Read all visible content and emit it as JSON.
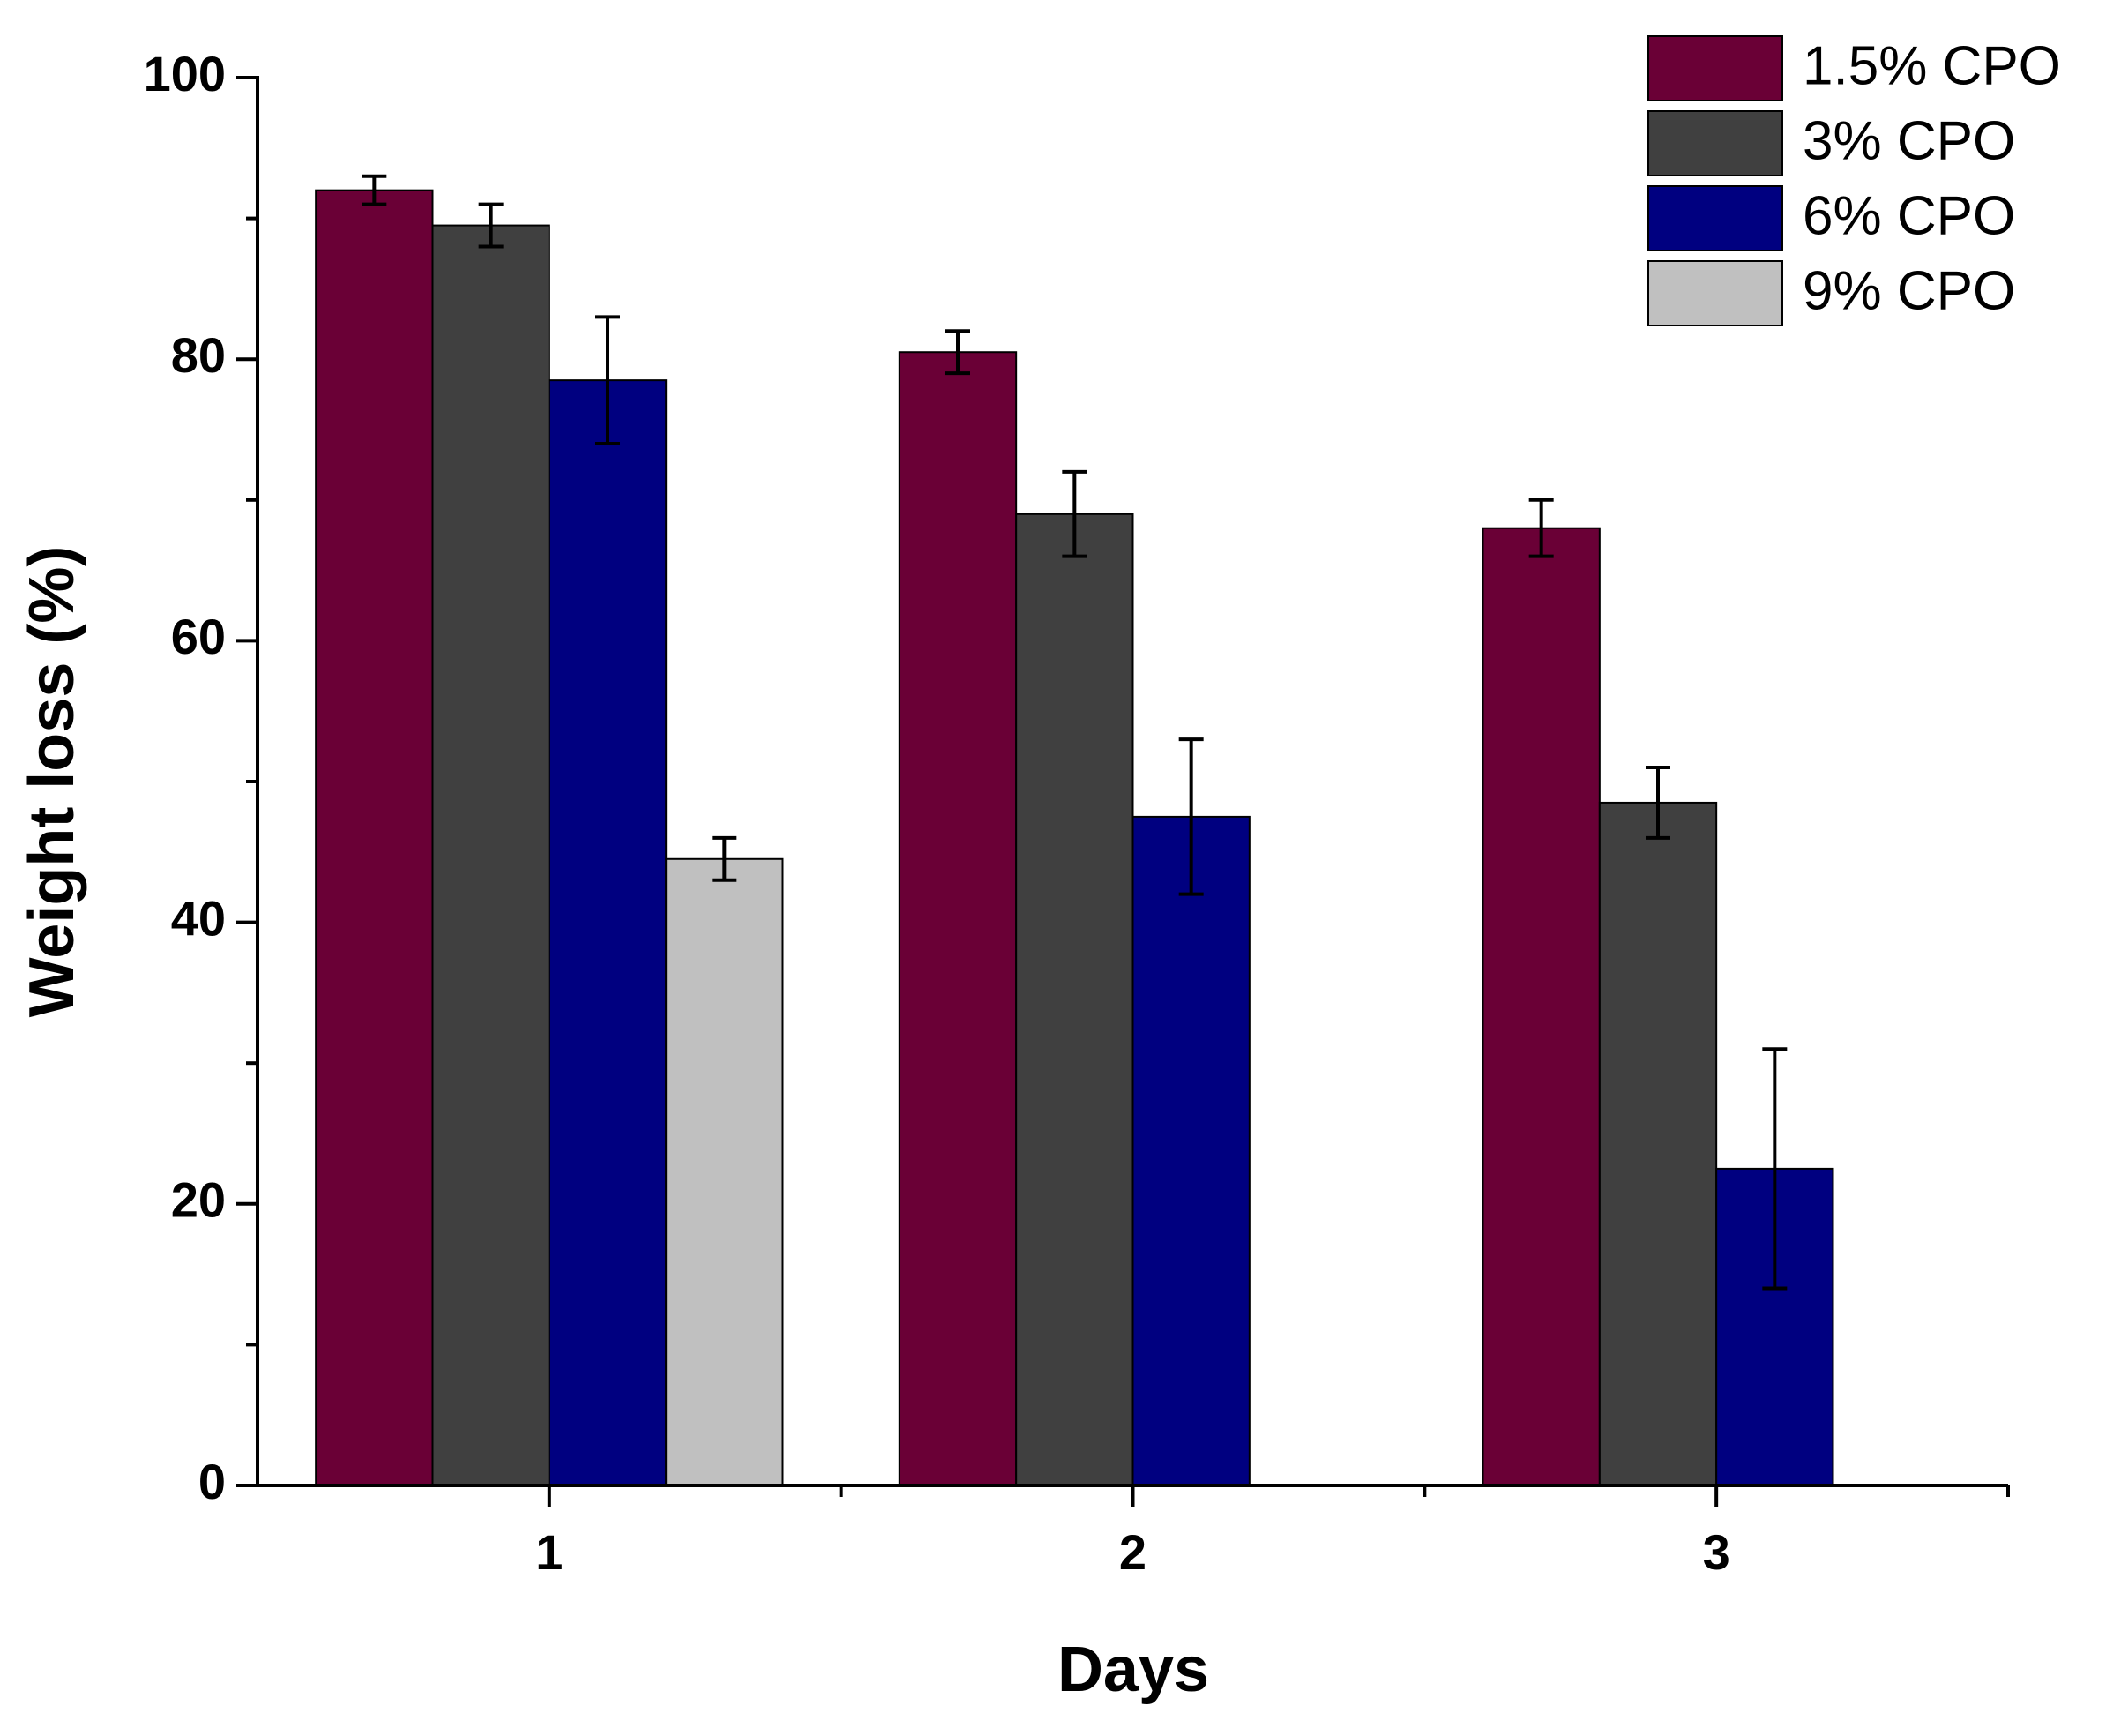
{
  "chart_data": {
    "type": "bar",
    "xlabel": "Days",
    "ylabel": "Weight loss (%)",
    "categories": [
      "1",
      "2",
      "3"
    ],
    "series": [
      {
        "name": "1.5% CPO",
        "color": "#6a0036",
        "values": [
          92,
          80.5,
          68
        ],
        "errors": [
          1,
          1.5,
          2
        ]
      },
      {
        "name": "3% CPO",
        "color": "#404040",
        "values": [
          89.5,
          69,
          48.5
        ],
        "errors": [
          1.5,
          3,
          2.5
        ]
      },
      {
        "name": "6% CPO",
        "color": "#000080",
        "values": [
          78.5,
          47.5,
          22.5
        ],
        "errors": [
          4.5,
          5.5,
          8.5
        ]
      },
      {
        "name": "9% CPO",
        "color": "#c0c0c0",
        "values": [
          44.5,
          null,
          null
        ],
        "errors": [
          1.5,
          null,
          null
        ]
      }
    ],
    "ylim": [
      0,
      100
    ],
    "yticks": [
      0,
      20,
      40,
      60,
      80,
      100
    ],
    "yminorticks": [
      10,
      30,
      50,
      70,
      90
    ],
    "grid": false,
    "legend": "top-right"
  }
}
